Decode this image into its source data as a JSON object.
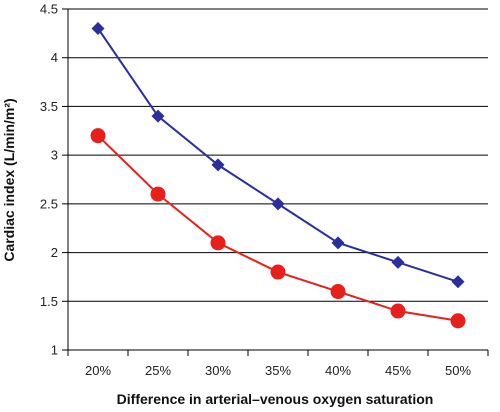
{
  "chart_data": {
    "type": "line",
    "title": "",
    "xlabel": "Difference in arterial–venous oxygen saturation",
    "ylabel": "Cardiac index (L/min/m²)",
    "categories": [
      "20%",
      "25%",
      "30%",
      "35%",
      "40%",
      "45%",
      "50%"
    ],
    "ylim": [
      1,
      4.5
    ],
    "yticks": [
      "1",
      "1.5",
      "2",
      "2.5",
      "3",
      "3.5",
      "4",
      "4.5"
    ],
    "grid": "horizontal",
    "legend": "none",
    "series": [
      {
        "marker": "diamond",
        "color": "#2b2f9e",
        "values": [
          4.3,
          3.4,
          2.9,
          2.5,
          2.1,
          1.9,
          1.7
        ]
      },
      {
        "marker": "circle",
        "color": "#e8201c",
        "values": [
          3.2,
          2.6,
          2.1,
          1.8,
          1.6,
          1.4,
          1.3
        ]
      }
    ]
  }
}
